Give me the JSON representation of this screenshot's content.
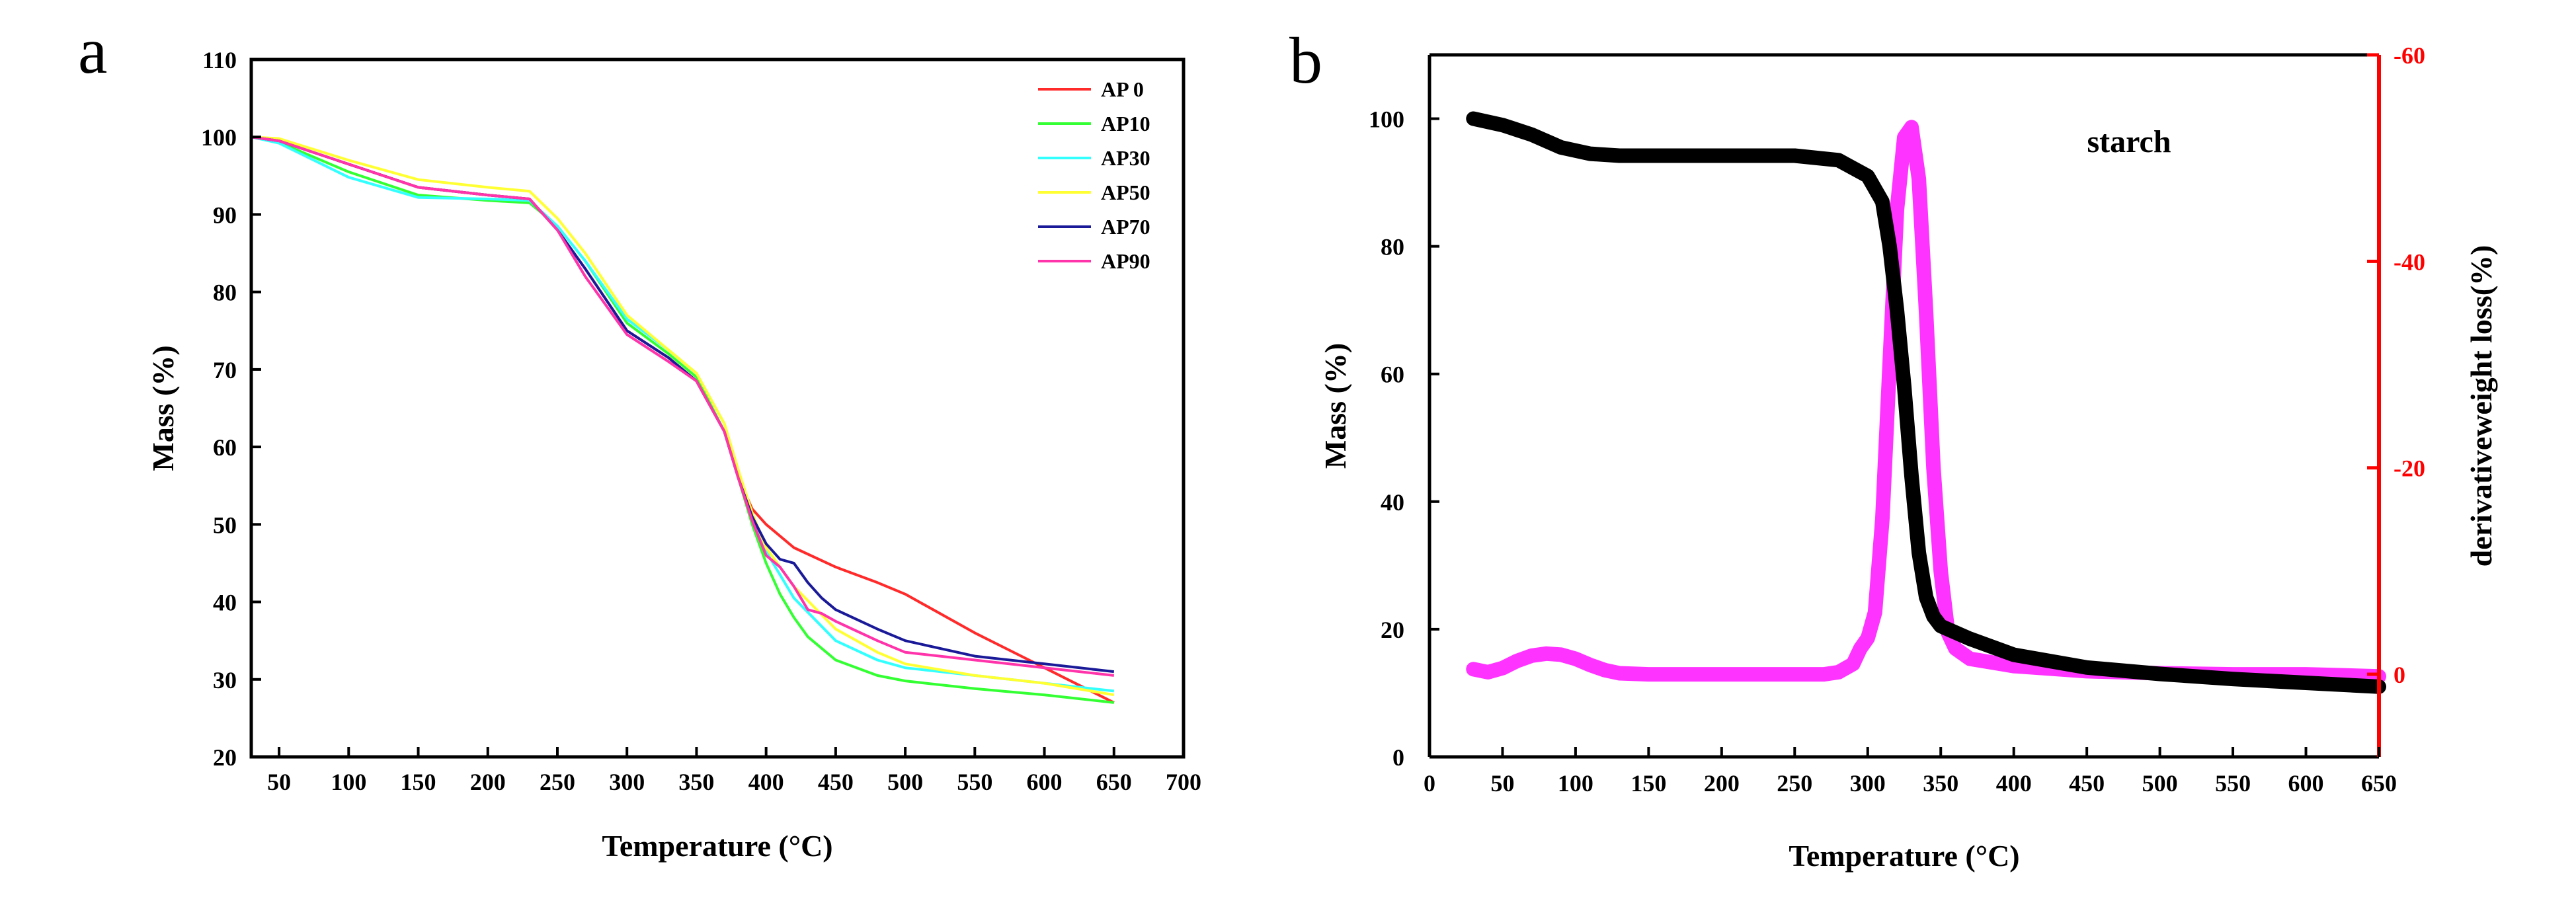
{
  "panels": {
    "a": {
      "letter": "a"
    },
    "b": {
      "letter": "b"
    }
  },
  "chart_data": [
    {
      "id": "a",
      "type": "line",
      "xlabel": "Temperature (°C)",
      "ylabel": "Mass (%)",
      "xlim": [
        30,
        700
      ],
      "ylim": [
        20,
        110
      ],
      "xticks": [
        50,
        100,
        150,
        200,
        250,
        300,
        350,
        400,
        450,
        500,
        550,
        600,
        650,
        700
      ],
      "yticks": [
        20,
        30,
        40,
        50,
        60,
        70,
        80,
        90,
        100,
        110
      ],
      "legend_position": "top-right",
      "series": [
        {
          "name": "AP 0",
          "color": "#ff2a2a",
          "x": [
            30,
            50,
            100,
            150,
            200,
            230,
            250,
            270,
            300,
            330,
            350,
            370,
            380,
            390,
            400,
            420,
            450,
            480,
            500,
            550,
            600,
            650
          ],
          "y": [
            100,
            99.5,
            96.5,
            93.5,
            92.5,
            92,
            88,
            83,
            75,
            71.5,
            68.5,
            62,
            56,
            52,
            50,
            47,
            44.5,
            42.5,
            41,
            36,
            31.5,
            27
          ]
        },
        {
          "name": "AP10",
          "color": "#33ff33",
          "x": [
            30,
            50,
            100,
            150,
            200,
            230,
            250,
            270,
            300,
            330,
            350,
            370,
            380,
            390,
            400,
            410,
            420,
            430,
            450,
            480,
            500,
            550,
            600,
            650
          ],
          "y": [
            100,
            99.3,
            95.5,
            92.5,
            91.8,
            91.5,
            88.5,
            84,
            76,
            72,
            69,
            62,
            56,
            50,
            45,
            41,
            38,
            35.5,
            32.5,
            30.5,
            29.8,
            28.8,
            28,
            27
          ]
        },
        {
          "name": "AP30",
          "color": "#33ffff",
          "x": [
            30,
            50,
            100,
            150,
            200,
            230,
            250,
            270,
            300,
            330,
            350,
            370,
            380,
            390,
            400,
            420,
            450,
            480,
            500,
            550,
            600,
            650
          ],
          "y": [
            100,
            99.2,
            94.8,
            92.2,
            92,
            91.8,
            88.5,
            84,
            76.5,
            72.5,
            69.5,
            63,
            57,
            51,
            46.5,
            40.5,
            35,
            32.5,
            31.5,
            30.5,
            29.5,
            28.5
          ]
        },
        {
          "name": "AP50",
          "color": "#ffff33",
          "x": [
            30,
            50,
            100,
            150,
            200,
            230,
            250,
            270,
            300,
            330,
            350,
            370,
            380,
            390,
            400,
            420,
            450,
            480,
            500,
            550,
            600,
            650
          ],
          "y": [
            100,
            99.8,
            97,
            94.5,
            93.5,
            93,
            89.5,
            85,
            77,
            72.5,
            69.5,
            63,
            57,
            51.5,
            47,
            42,
            36.5,
            33.5,
            32,
            30.5,
            29.5,
            28
          ]
        },
        {
          "name": "AP70",
          "color": "#1a1a99",
          "x": [
            30,
            50,
            100,
            150,
            200,
            230,
            250,
            270,
            300,
            330,
            350,
            370,
            380,
            390,
            400,
            410,
            420,
            430,
            440,
            450,
            480,
            500,
            550,
            600,
            650
          ],
          "y": [
            100,
            99.5,
            96.5,
            93.5,
            92.5,
            92,
            88,
            83,
            75,
            71.5,
            68.5,
            62,
            56,
            51,
            47.5,
            45.5,
            45,
            42.5,
            40.5,
            39,
            36.5,
            35,
            33,
            32,
            31
          ]
        },
        {
          "name": "AP90",
          "color": "#ff33aa",
          "x": [
            30,
            50,
            100,
            150,
            200,
            230,
            250,
            270,
            300,
            330,
            350,
            370,
            380,
            390,
            400,
            410,
            420,
            430,
            440,
            450,
            480,
            500,
            550,
            600,
            650
          ],
          "y": [
            100,
            99.5,
            96.5,
            93.5,
            92.5,
            92,
            88,
            82,
            74.5,
            71,
            68.5,
            62,
            56,
            50.5,
            46,
            44.5,
            42,
            39,
            38.5,
            37.5,
            35,
            33.5,
            32.5,
            31.5,
            30.5
          ]
        }
      ]
    },
    {
      "id": "b",
      "type": "line",
      "xlabel": "Temperature (°C)",
      "ylabel": "Mass (%)",
      "ylabel_right": "derivativeweight loss(%)",
      "annotation": "starch",
      "xlim": [
        0,
        650
      ],
      "ylim": [
        0,
        110
      ],
      "ylim_right": [
        8,
        -60
      ],
      "xticks": [
        0,
        50,
        100,
        150,
        200,
        250,
        300,
        350,
        400,
        450,
        500,
        550,
        600,
        650
      ],
      "yticks": [
        0,
        20,
        40,
        60,
        80,
        100
      ],
      "yticks_right": [
        0,
        -20,
        -40,
        -60
      ],
      "series": [
        {
          "name": "mass",
          "axis": "left",
          "color": "#000000",
          "x": [
            30,
            50,
            70,
            90,
            110,
            130,
            150,
            200,
            250,
            280,
            300,
            310,
            315,
            320,
            325,
            330,
            335,
            340,
            345,
            350,
            370,
            400,
            450,
            500,
            550,
            600,
            650
          ],
          "y": [
            100,
            99,
            97.5,
            95.5,
            94.5,
            94.2,
            94.2,
            94.2,
            94.2,
            93.5,
            91,
            87,
            80,
            70,
            58,
            44,
            32,
            25,
            22,
            20.5,
            18.5,
            16,
            14,
            13,
            12.2,
            11.6,
            11
          ]
        },
        {
          "name": "derivative weight loss",
          "axis": "right",
          "color": "#ff33ff",
          "x": [
            30,
            40,
            50,
            60,
            70,
            80,
            90,
            100,
            110,
            120,
            130,
            150,
            200,
            250,
            270,
            280,
            290,
            295,
            300,
            305,
            310,
            315,
            320,
            325,
            330,
            335,
            340,
            345,
            350,
            355,
            360,
            370,
            400,
            450,
            500,
            550,
            600,
            650
          ],
          "y": [
            -0.5,
            -0.2,
            -0.6,
            -1.3,
            -1.8,
            -2,
            -1.9,
            -1.5,
            -0.9,
            -0.4,
            -0.1,
            0,
            0,
            0,
            0,
            -0.2,
            -1,
            -2.5,
            -3.5,
            -6,
            -15,
            -30,
            -45,
            -52,
            -53,
            -48,
            -35,
            -20,
            -10,
            -4,
            -2.5,
            -1.5,
            -0.8,
            -0.3,
            -0.1,
            0,
            0,
            0.2
          ]
        }
      ]
    }
  ]
}
